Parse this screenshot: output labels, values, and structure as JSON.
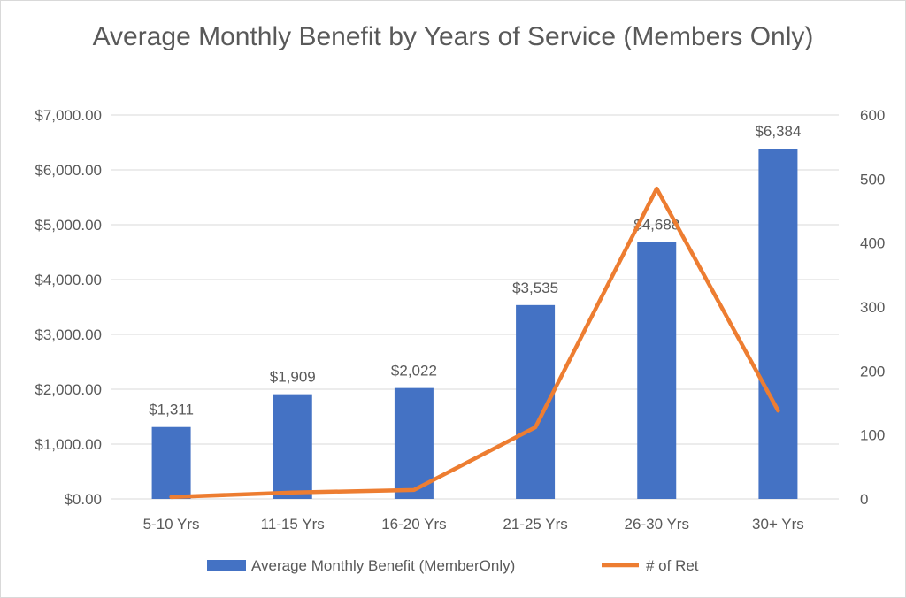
{
  "chart_data": {
    "type": "bar+line",
    "title": "Average Monthly Benefit by Years of Service (Members Only)",
    "categories": [
      "5-10 Yrs",
      "11-15 Yrs",
      "16-20 Yrs",
      "21-25 Yrs",
      "26-30 Yrs",
      "30+ Yrs"
    ],
    "series": [
      {
        "name": "Average Monthly Benefit (MemberOnly)",
        "type": "bar",
        "axis": "left",
        "color": "#4472C4",
        "values": [
          1311,
          1909,
          2022,
          3535,
          4688,
          6384
        ],
        "data_labels": [
          "$1,311",
          "$1,909",
          "$2,022",
          "$3,535",
          "$4,688",
          "$6,384"
        ]
      },
      {
        "name": "# of Ret",
        "type": "line",
        "axis": "right",
        "color": "#ED7D31",
        "values": [
          3,
          10,
          14,
          112,
          485,
          138
        ]
      }
    ],
    "left_axis": {
      "ylim": [
        0,
        7000
      ],
      "ticks": [
        0,
        1000,
        2000,
        3000,
        4000,
        5000,
        6000,
        7000
      ],
      "tick_labels": [
        "$0.00",
        "$1,000.00",
        "$2,000.00",
        "$3,000.00",
        "$4,000.00",
        "$5,000.00",
        "$6,000.00",
        "$7,000.00"
      ]
    },
    "right_axis": {
      "ylim": [
        0,
        600
      ],
      "ticks": [
        0,
        100,
        200,
        300,
        400,
        500,
        600
      ],
      "tick_labels": [
        "0",
        "100",
        "200",
        "300",
        "400",
        "500",
        "600"
      ]
    },
    "grid": true,
    "legend": "bottom"
  }
}
